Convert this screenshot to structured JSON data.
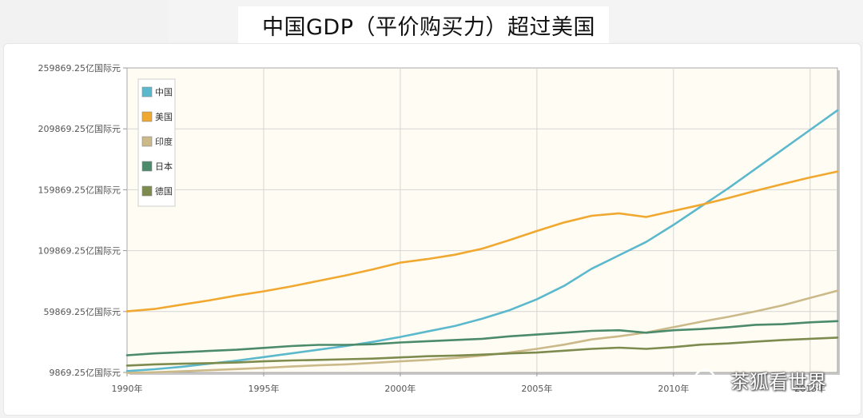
{
  "title": "中国GDP（平价购买力）超过美国",
  "watermark": "茶狐看世界",
  "colors": {
    "plot_bg": "#fffdf3",
    "grid": "#d4d4d4",
    "axis": "#999999"
  },
  "chart_data": {
    "type": "line",
    "title": "中国GDP（平价购买力）超过美国",
    "xlabel": "",
    "ylabel": "",
    "x": [
      1990,
      1991,
      1992,
      1993,
      1994,
      1995,
      1996,
      1997,
      1998,
      1999,
      2000,
      2001,
      2002,
      2003,
      2004,
      2005,
      2006,
      2007,
      2008,
      2009,
      2010,
      2011,
      2012,
      2013,
      2014,
      2015,
      2016
    ],
    "xlim": [
      1990,
      2016
    ],
    "ylim": [
      9869.25,
      259869.25
    ],
    "x_ticks": [
      1990,
      1995,
      2000,
      2005,
      2010,
      2015
    ],
    "x_tick_labels": [
      "1990年",
      "1995年",
      "2000年",
      "2005年",
      "2010年",
      "2015年"
    ],
    "y_ticks": [
      9869.25,
      59869.25,
      109869.25,
      159869.25,
      209869.25,
      259869.25
    ],
    "y_tick_labels": [
      "9869.25亿国际元",
      "59869.25亿国际元",
      "109869.25亿国际元",
      "159869.25亿国际元",
      "209869.25亿国际元",
      "259869.25亿国际元"
    ],
    "grid": true,
    "legend_position": "top-left",
    "series": [
      {
        "name": "中国",
        "color": "#5cb8cc",
        "values": [
          11000,
          12500,
          14500,
          17000,
          19500,
          22500,
          25500,
          28500,
          31500,
          35000,
          39000,
          43500,
          48000,
          54000,
          61000,
          70000,
          81000,
          95000,
          106000,
          117000,
          131000,
          146000,
          161000,
          177000,
          193000,
          209000,
          225000
        ]
      },
      {
        "name": "美国",
        "color": "#f0a830",
        "values": [
          60000,
          62000,
          65500,
          69000,
          73000,
          76500,
          80500,
          85000,
          89500,
          94500,
          100000,
          103000,
          106500,
          111500,
          118500,
          126000,
          133000,
          138500,
          140500,
          137500,
          142500,
          147500,
          153000,
          159000,
          164500,
          170000,
          174800
        ]
      },
      {
        "name": "印度",
        "color": "#cbb98a",
        "values": [
          9500,
          10000,
          10800,
          11700,
          12600,
          13600,
          14700,
          15700,
          16500,
          17700,
          19000,
          20200,
          21700,
          23700,
          26200,
          29200,
          32700,
          37000,
          39500,
          42700,
          47000,
          51500,
          55500,
          60000,
          65000,
          71000,
          77000
        ]
      },
      {
        "name": "日本",
        "color": "#4b8a6a",
        "values": [
          24000,
          25500,
          26500,
          27500,
          28500,
          30000,
          31500,
          32500,
          32500,
          33000,
          34500,
          35500,
          36500,
          37500,
          39500,
          41000,
          42500,
          44000,
          44500,
          42500,
          44500,
          45500,
          47000,
          49000,
          49500,
          51000,
          52000
        ]
      },
      {
        "name": "德国",
        "color": "#7e8b4e",
        "values": [
          15500,
          16500,
          17000,
          17500,
          18000,
          19000,
          19700,
          20200,
          20700,
          21200,
          22200,
          23200,
          23700,
          24500,
          25500,
          26200,
          27700,
          29200,
          30200,
          29200,
          30700,
          32700,
          33700,
          35200,
          36500,
          37500,
          38500
        ]
      }
    ]
  }
}
